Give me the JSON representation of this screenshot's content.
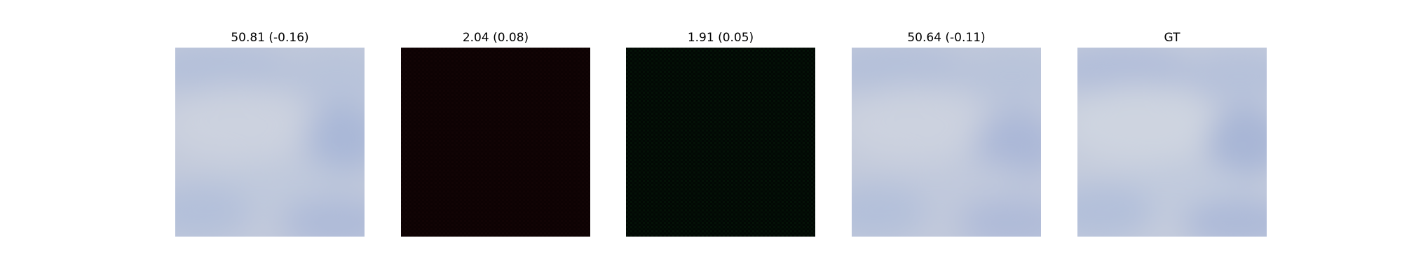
{
  "panels": [
    {
      "title": "50.81 (-0.16)",
      "image": {
        "kind": "cloudy-sky",
        "base_color": "#c3cadb",
        "tint_color": "#aebcd9"
      }
    },
    {
      "title": "2.04 (0.08)",
      "image": {
        "kind": "dark-noise",
        "base_color": "#0d0203",
        "tint_color": "#1a0506"
      }
    },
    {
      "title": "1.91 (0.05)",
      "image": {
        "kind": "dark-noise",
        "base_color": "#020804",
        "tint_color": "#061a0d"
      }
    },
    {
      "title": "50.64 (-0.11)",
      "image": {
        "kind": "cloudy-sky",
        "base_color": "#c3cadb",
        "tint_color": "#aebcd9"
      }
    },
    {
      "title": "GT",
      "image": {
        "kind": "cloudy-sky",
        "base_color": "#c5ccdc",
        "tint_color": "#adbbd8"
      }
    }
  ]
}
